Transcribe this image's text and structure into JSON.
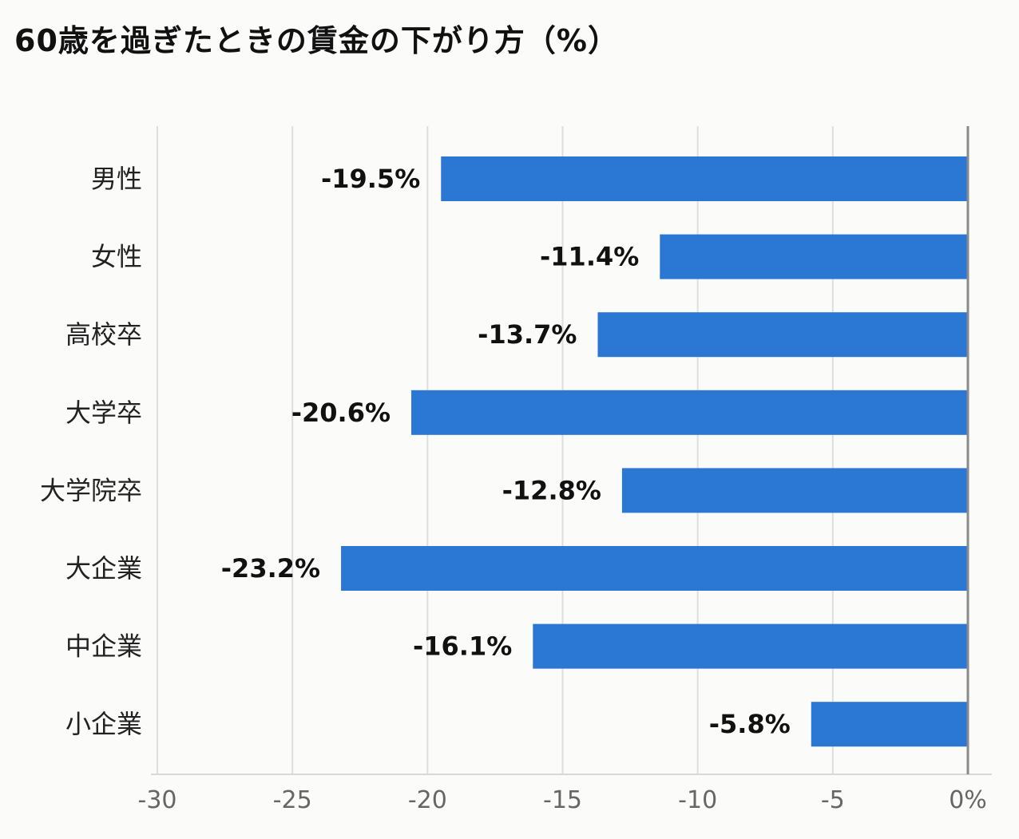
{
  "chart_data": {
    "type": "bar",
    "orientation": "horizontal",
    "title": "60歳を過ぎたときの賃金の下がり方（%）",
    "categories": [
      "男性",
      "女性",
      "高校卒",
      "大学卒",
      "大学院卒",
      "大企業",
      "中企業",
      "小企業"
    ],
    "values": [
      -19.5,
      -11.4,
      -13.7,
      -20.6,
      -12.8,
      -23.2,
      -16.1,
      -5.8
    ],
    "value_labels": [
      "-19.5%",
      "-11.4%",
      "-13.7%",
      "-20.6%",
      "-12.8%",
      "-23.2%",
      "-16.1%",
      "-5.8%"
    ],
    "xlim": [
      -30,
      0
    ],
    "xticks": [
      -30,
      -25,
      -20,
      -15,
      -10,
      -5,
      0
    ],
    "xtick_labels": [
      "-30",
      "-25",
      "-20",
      "-15",
      "-10",
      "-5",
      "0%"
    ],
    "grid": true,
    "legend": "none",
    "bar_color": "#2a78d4"
  }
}
